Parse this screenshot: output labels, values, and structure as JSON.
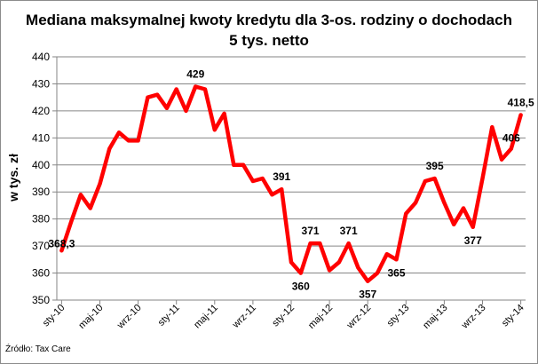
{
  "chart_data": {
    "type": "line",
    "title": "Mediana maksymalnej kwoty kredytu dla 3-os. rodziny o dochodach",
    "subtitle": "5 tys. netto",
    "ylabel": "w tys. zł",
    "xlabel": "",
    "ylim": [
      350,
      440
    ],
    "yticks": [
      350,
      360,
      370,
      380,
      390,
      400,
      410,
      420,
      430,
      440
    ],
    "grid": true,
    "legend": "none",
    "x_tick_labels": [
      "sty-10",
      "maj-10",
      "wrz-10",
      "sty-11",
      "maj-11",
      "wrz-11",
      "sty-12",
      "maj-12",
      "wrz-12",
      "sty-13",
      "maj-13",
      "wrz-13",
      "sty-14"
    ],
    "x": [
      "sty-10",
      "lut-10",
      "mar-10",
      "kwi-10",
      "maj-10",
      "cze-10",
      "lip-10",
      "sie-10",
      "wrz-10",
      "paź-10",
      "lis-10",
      "gru-10",
      "sty-11",
      "lut-11",
      "mar-11",
      "kwi-11",
      "maj-11",
      "cze-11",
      "lip-11",
      "sie-11",
      "wrz-11",
      "paź-11",
      "lis-11",
      "gru-11",
      "sty-12",
      "lut-12",
      "mar-12",
      "kwi-12",
      "maj-12",
      "cze-12",
      "lip-12",
      "sie-12",
      "wrz-12",
      "paź-12",
      "lis-12",
      "gru-12",
      "sty-13",
      "lut-13",
      "mar-13",
      "kwi-13",
      "maj-13",
      "cze-13",
      "lip-13",
      "sie-13",
      "wrz-13",
      "paź-13",
      "lis-13",
      "gru-13",
      "sty-14"
    ],
    "series": [
      {
        "values": [
          368.3,
          379,
          389,
          384,
          393,
          406,
          412,
          409,
          409,
          425,
          426,
          421,
          428,
          420,
          429,
          428,
          413,
          419,
          400,
          400,
          394,
          395,
          389,
          391,
          364,
          360,
          371,
          371,
          361,
          364,
          371,
          362,
          357,
          360,
          367,
          365,
          382,
          386,
          394,
          395,
          386,
          378,
          384,
          377,
          395,
          414,
          402,
          406,
          418.5
        ]
      }
    ],
    "data_labels": [
      {
        "index": 0,
        "text": "368,3"
      },
      {
        "index": 14,
        "text": "429"
      },
      {
        "index": 23,
        "text": "391"
      },
      {
        "index": 25,
        "text": "360"
      },
      {
        "index": 26,
        "text": "371"
      },
      {
        "index": 30,
        "text": "371"
      },
      {
        "index": 32,
        "text": "357"
      },
      {
        "index": 35,
        "text": "365"
      },
      {
        "index": 39,
        "text": "395"
      },
      {
        "index": 43,
        "text": "377"
      },
      {
        "index": 47,
        "text": "406"
      },
      {
        "index": 48,
        "text": "418,5"
      }
    ],
    "line_color": "#ff0000",
    "grid_color": "#868686",
    "axis_color": "#868686"
  },
  "source_text": "Źródło: Tax Care"
}
